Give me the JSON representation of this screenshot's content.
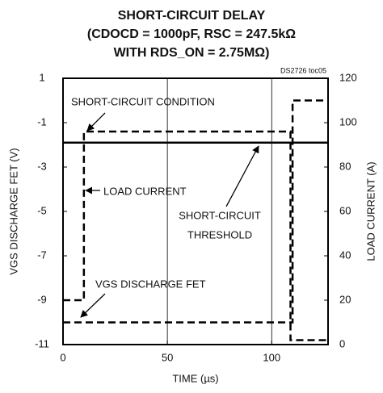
{
  "chart_data": {
    "type": "line",
    "title": [
      "SHORT-CIRCUIT DELAY",
      "(CDOCD = 1000pF, RSC = 247.5kΩ",
      "WITH RDS_ON = 2.75MΩ)"
    ],
    "watermark": "DS2726 toc05",
    "x_label": "TIME (µs)",
    "y_label": "VGS DISCHARGE FET (V)",
    "y2_label": "LOAD CURRENT (A)",
    "xlim": [
      0,
      127
    ],
    "xticks": [
      0,
      50,
      100
    ],
    "ylim": [
      -11,
      1
    ],
    "yticks": [
      1,
      -1,
      -3,
      -5,
      -7,
      -9,
      -11
    ],
    "y2lim": [
      0,
      120
    ],
    "y2ticks": [
      0,
      20,
      40,
      60,
      80,
      100,
      120
    ],
    "grid": "x",
    "series": [
      {
        "name": "SHORT-CIRCUIT THRESHOLD",
        "color": "#000000",
        "style": "solid",
        "axis": "y",
        "x": [
          0,
          127
        ],
        "values": [
          -1.9,
          -1.9
        ]
      },
      {
        "name": "VGS DISCHARGE FET",
        "color": "#000000",
        "style": "dashed",
        "axis": "y",
        "x": [
          0,
          110,
          110,
          127
        ],
        "values": [
          -10,
          -10,
          0,
          0
        ]
      },
      {
        "name": "LOAD CURRENT",
        "color": "#000000",
        "style": "dashed",
        "axis": "y2",
        "x": [
          0,
          10,
          10,
          109,
          109,
          127
        ],
        "values": [
          20,
          20,
          96,
          96,
          2,
          2
        ]
      }
    ],
    "annotations": [
      {
        "text": [
          "SHORT-CIRCUIT CONDITION"
        ]
      },
      {
        "text": [
          "LOAD CURRENT"
        ]
      },
      {
        "text": [
          "SHORT-CIRCUIT",
          "THRESHOLD"
        ]
      },
      {
        "text": [
          "VGS DISCHARGE FET"
        ]
      }
    ]
  }
}
